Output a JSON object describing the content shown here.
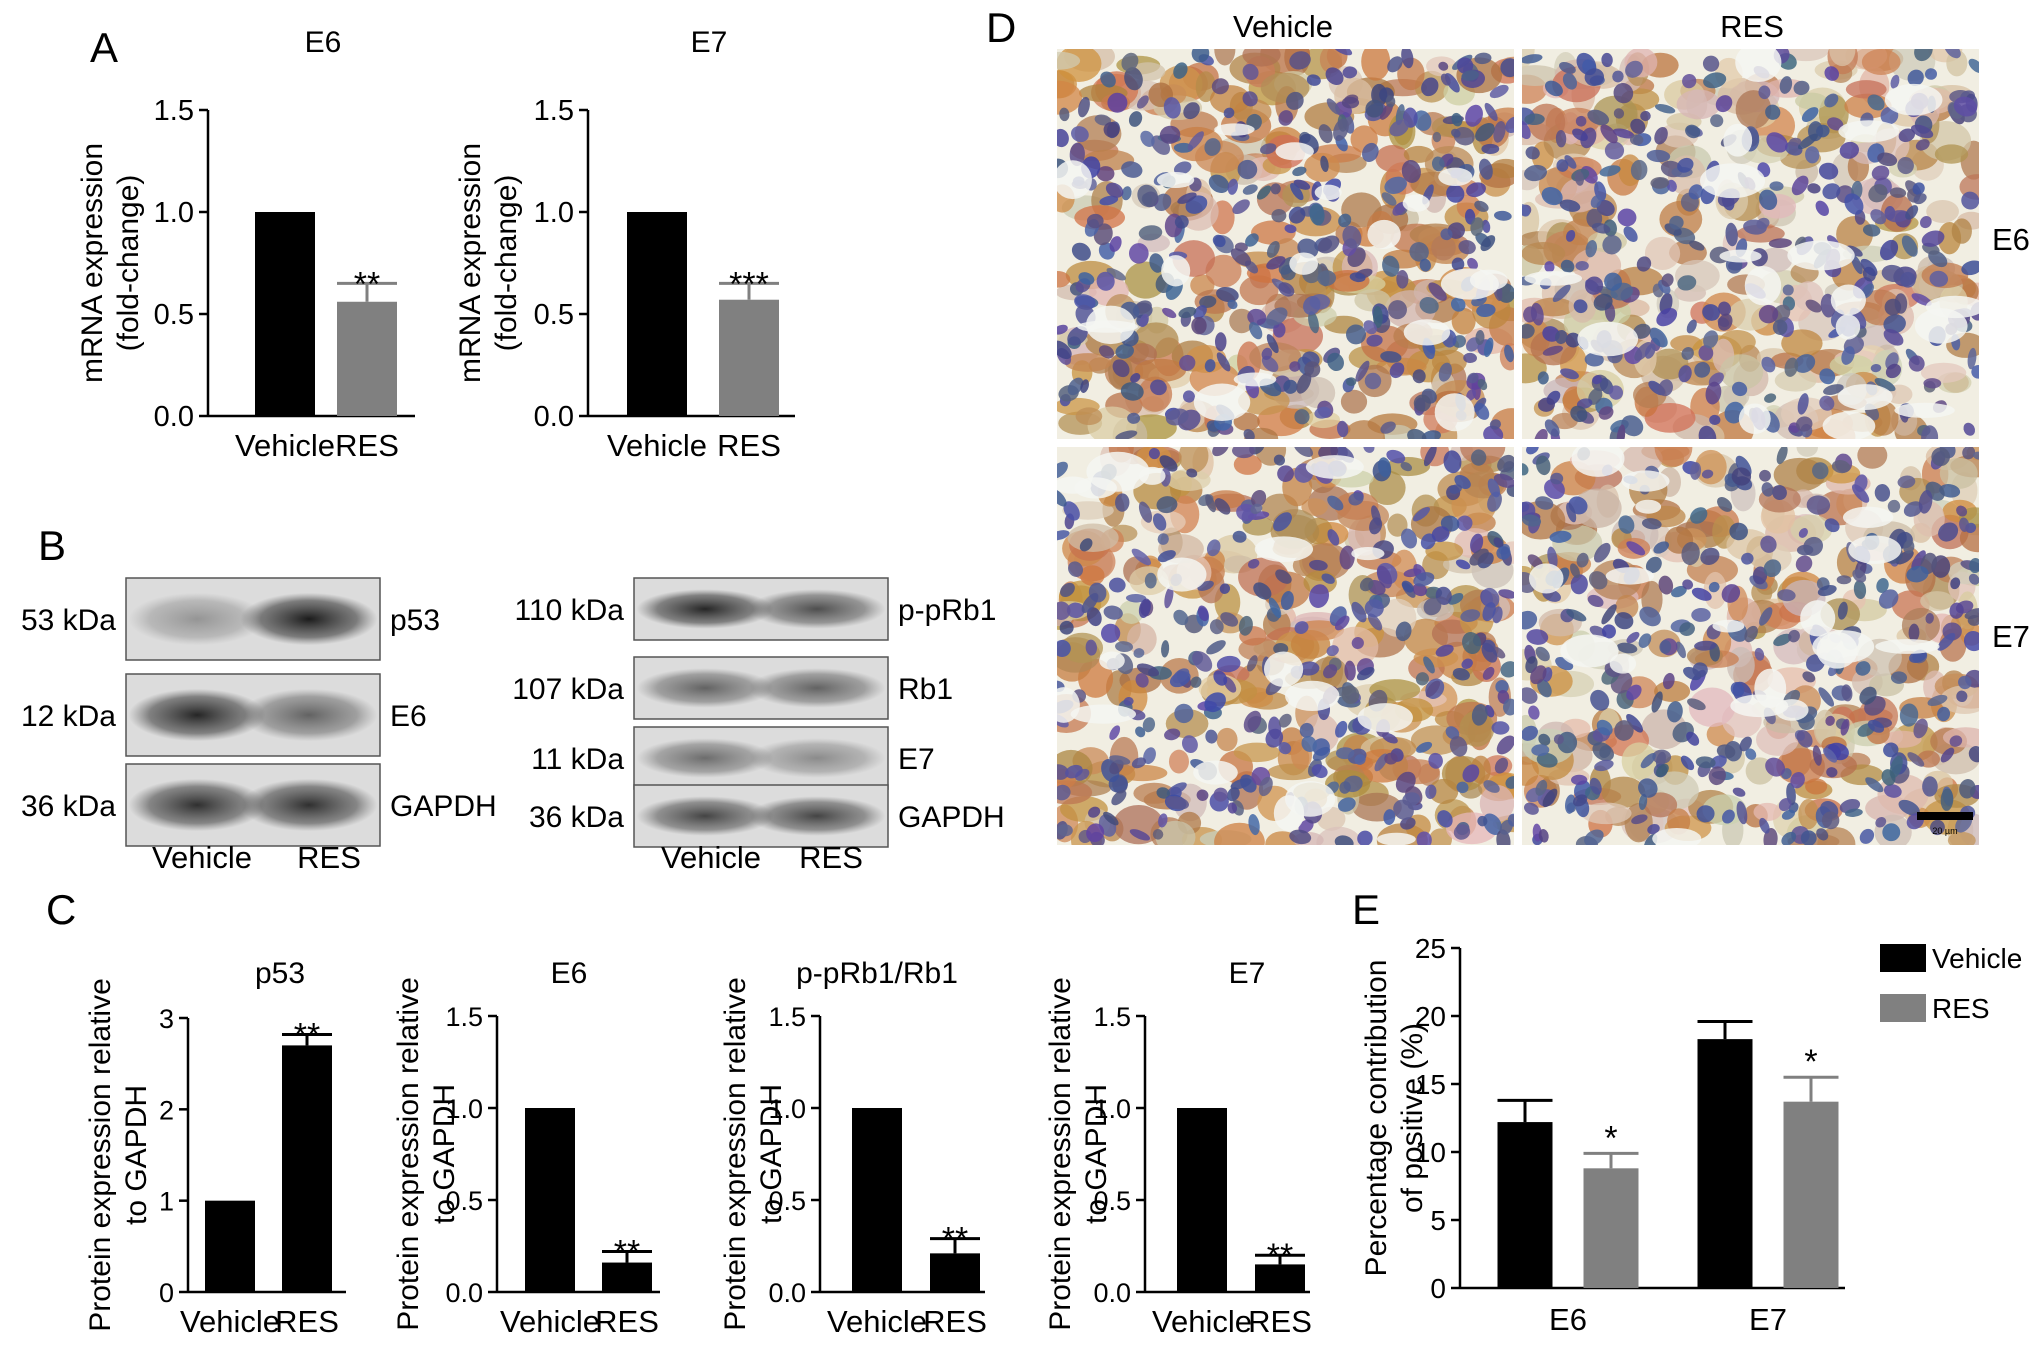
{
  "panels": {
    "a": "A",
    "b": "B",
    "c": "C",
    "d": "D",
    "e": "E"
  },
  "colors": {
    "vehicle": "#000000",
    "res": "#808080",
    "stain_brown": "#c08a4e",
    "nuclei_blue": "#4a4f8e",
    "background": "#ffffff"
  },
  "panel_b": {
    "left": {
      "bands": [
        {
          "size": "53 kDa",
          "label": "p53"
        },
        {
          "size": "12 kDa",
          "label": "E6"
        },
        {
          "size": "36 kDa",
          "label": "GAPDH"
        }
      ],
      "lanes": [
        "Vehicle",
        "RES"
      ]
    },
    "right": {
      "bands": [
        {
          "size": "110 kDa",
          "label": "p-pRb1"
        },
        {
          "size": "107 kDa",
          "label": "Rb1"
        },
        {
          "size": "11 kDa",
          "label": "E7"
        },
        {
          "size": "36 kDa",
          "label": "GAPDH"
        }
      ],
      "lanes": [
        "Vehicle",
        "RES"
      ]
    }
  },
  "panel_d": {
    "columns": [
      "Vehicle",
      "RES"
    ],
    "rows": [
      "E6",
      "E7"
    ],
    "scale_bar_label": "20 µm"
  },
  "chart_data": [
    {
      "id": "A-E6",
      "type": "bar",
      "title": "E6",
      "ylabel": "mRNA expression\n(fold-change)",
      "xlabel": "",
      "categories": [
        "Vehicle",
        "RES"
      ],
      "values": [
        1.0,
        0.56
      ],
      "errors": [
        0,
        0.09
      ],
      "significance": [
        "",
        "**"
      ],
      "ylim": [
        0,
        1.5
      ],
      "yticks": [
        "0.0",
        "0.5",
        "1.0",
        "1.5"
      ],
      "colors": [
        "#000000",
        "#808080"
      ]
    },
    {
      "id": "A-E7",
      "type": "bar",
      "title": "E7",
      "ylabel": "mRNA expression\n(fold-change)",
      "xlabel": "",
      "categories": [
        "Vehicle",
        "RES"
      ],
      "values": [
        1.0,
        0.57
      ],
      "errors": [
        0,
        0.08
      ],
      "significance": [
        "",
        "***"
      ],
      "ylim": [
        0,
        1.5
      ],
      "yticks": [
        "0.0",
        "0.5",
        "1.0",
        "1.5"
      ],
      "colors": [
        "#000000",
        "#808080"
      ]
    },
    {
      "id": "C-p53",
      "type": "bar",
      "title": "p53",
      "ylabel": "Protein expression relative\nto GAPDH",
      "xlabel": "",
      "categories": [
        "Vehicle",
        "RES"
      ],
      "values": [
        1.0,
        2.7
      ],
      "errors": [
        0,
        0.12
      ],
      "significance": [
        "",
        "**"
      ],
      "ylim": [
        0,
        3
      ],
      "yticks": [
        "0",
        "1",
        "2",
        "3"
      ],
      "colors": [
        "#000000",
        "#000000"
      ]
    },
    {
      "id": "C-E6",
      "type": "bar",
      "title": "E6",
      "ylabel": "Protein expression relative\nto GAPDH",
      "xlabel": "",
      "categories": [
        "Vehicle",
        "RES"
      ],
      "values": [
        1.0,
        0.16
      ],
      "errors": [
        0,
        0.06
      ],
      "significance": [
        "",
        "**"
      ],
      "ylim": [
        0,
        1.5
      ],
      "yticks": [
        "0.0",
        "0.5",
        "1.0",
        "1.5"
      ],
      "colors": [
        "#000000",
        "#000000"
      ]
    },
    {
      "id": "C-pRb1",
      "type": "bar",
      "title": "p-pRb1/Rb1",
      "ylabel": "Protein expression relative\nto GAPDH",
      "xlabel": "",
      "categories": [
        "Vehicle",
        "RES"
      ],
      "values": [
        1.0,
        0.21
      ],
      "errors": [
        0,
        0.08
      ],
      "significance": [
        "",
        "**"
      ],
      "ylim": [
        0,
        1.5
      ],
      "yticks": [
        "0.0",
        "0.5",
        "1.0",
        "1.5"
      ],
      "colors": [
        "#000000",
        "#000000"
      ]
    },
    {
      "id": "C-E7",
      "type": "bar",
      "title": "E7",
      "ylabel": "Protein expression relative\nto GAPDH",
      "xlabel": "",
      "categories": [
        "Vehicle",
        "RES"
      ],
      "values": [
        1.0,
        0.15
      ],
      "errors": [
        0,
        0.05
      ],
      "significance": [
        "",
        "**"
      ],
      "ylim": [
        0,
        1.5
      ],
      "yticks": [
        "0.0",
        "0.5",
        "1.0",
        "1.5"
      ],
      "colors": [
        "#000000",
        "#000000"
      ]
    },
    {
      "id": "E",
      "type": "bar",
      "title": "",
      "ylabel": "Percentage contribution\nof positive (%)",
      "xlabel": "",
      "categories": [
        "E6",
        "E7"
      ],
      "series": [
        {
          "name": "Vehicle",
          "values": [
            12.2,
            18.3
          ],
          "errors": [
            1.6,
            1.3
          ],
          "color": "#000000",
          "significance": [
            "",
            ""
          ]
        },
        {
          "name": "RES",
          "values": [
            8.8,
            13.7
          ],
          "errors": [
            1.1,
            1.8
          ],
          "color": "#808080",
          "significance": [
            "*",
            "*"
          ]
        }
      ],
      "ylim": [
        0,
        25
      ],
      "yticks": [
        "0",
        "5",
        "10",
        "15",
        "20",
        "25"
      ],
      "legend": "top-right"
    }
  ]
}
